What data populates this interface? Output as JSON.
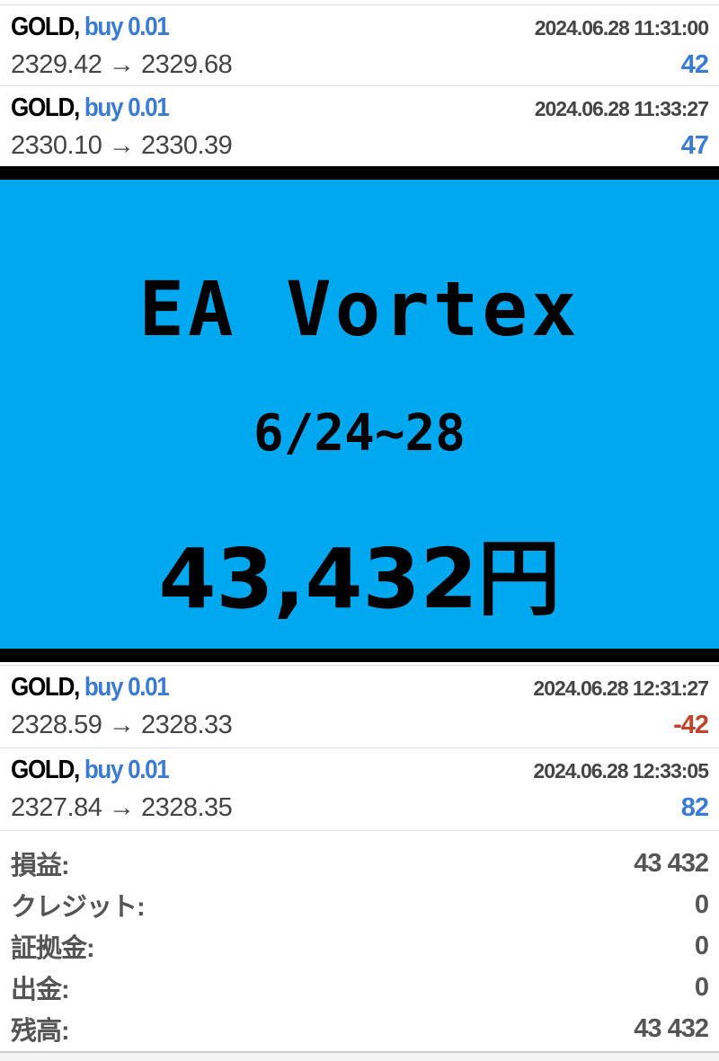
{
  "trades_top": [
    {
      "symbol": "GOLD,",
      "direction": "buy 0.01",
      "time": "2024.06.28 11:31:00",
      "open": "2329.42",
      "arrow": "→",
      "close": "2329.68",
      "profit": "42"
    },
    {
      "symbol": "GOLD,",
      "direction": "buy 0.01",
      "time": "2024.06.28 11:33:27",
      "open": "2330.10",
      "arrow": "→",
      "close": "2330.39",
      "profit": "47"
    }
  ],
  "banner": {
    "title": "EA Vortex",
    "range": "6/24~28",
    "amount": "43,432円",
    "background": "#00a8f0"
  },
  "trades_bottom": [
    {
      "symbol": "GOLD,",
      "direction": "buy 0.01",
      "time": "2024.06.28 12:31:27",
      "open": "2328.59",
      "arrow": "→",
      "close": "2328.33",
      "profit": "-42"
    },
    {
      "symbol": "GOLD,",
      "direction": "buy 0.01",
      "time": "2024.06.28 12:33:05",
      "open": "2327.84",
      "arrow": "→",
      "close": "2328.35",
      "profit": "82"
    }
  ],
  "summary": [
    {
      "label": "損益:",
      "value": "43 432"
    },
    {
      "label": "クレジット:",
      "value": "0"
    },
    {
      "label": "証拠金:",
      "value": "0"
    },
    {
      "label": "出金:",
      "value": "0"
    },
    {
      "label": "残高:",
      "value": "43 432"
    }
  ],
  "colors": {
    "positive": "#3a7bd5",
    "negative": "#c0432c"
  }
}
